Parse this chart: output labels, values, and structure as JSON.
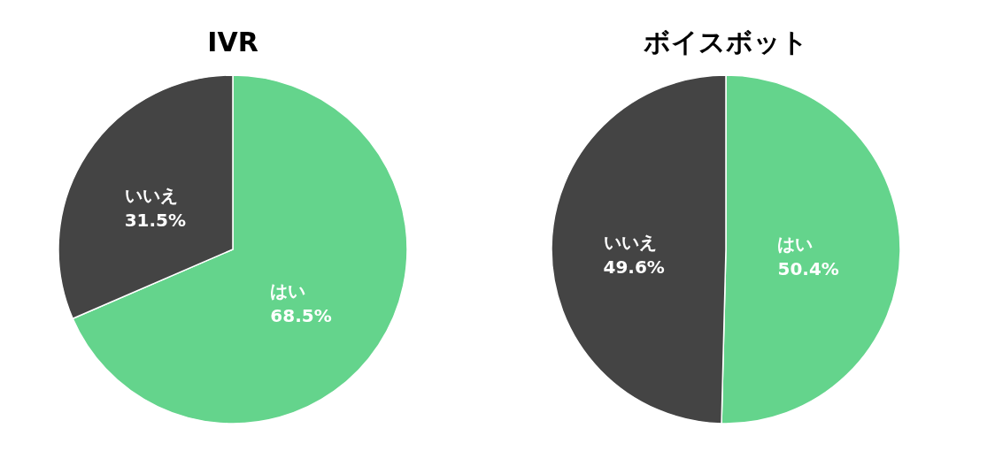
{
  "chart_data": [
    {
      "type": "pie",
      "title": "IVR",
      "categories": [
        "はい",
        "いいえ"
      ],
      "values": [
        68.5,
        31.5
      ],
      "colors": [
        "#64d48c",
        "#444444"
      ],
      "value_labels": [
        "68.5%",
        "31.5%"
      ]
    },
    {
      "type": "pie",
      "title": "ボイスボット",
      "categories": [
        "はい",
        "いいえ"
      ],
      "values": [
        50.4,
        49.6
      ],
      "colors": [
        "#64d48c",
        "#444444"
      ],
      "value_labels": [
        "50.4%",
        "49.6%"
      ]
    }
  ]
}
